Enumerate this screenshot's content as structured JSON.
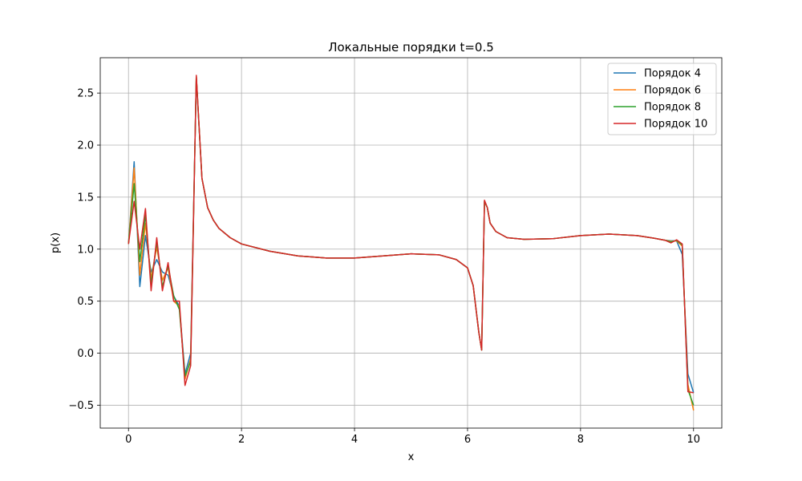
{
  "chart_data": {
    "type": "line",
    "title": "Локальные порядки t=0.5",
    "xlabel": "x",
    "ylabel": "p(x)",
    "xlim": [
      -0.5,
      10.5
    ],
    "ylim": [
      -0.72,
      2.84
    ],
    "xticks": [
      0,
      2,
      4,
      6,
      8,
      10
    ],
    "yticks": [
      -0.5,
      0.0,
      0.5,
      1.0,
      1.5,
      2.0,
      2.5
    ],
    "ytick_labels": [
      "−0.5",
      "0.0",
      "0.5",
      "1.0",
      "1.5",
      "2.0",
      "2.5"
    ],
    "grid": true,
    "legend_position": "top-right",
    "x": [
      0,
      0.1,
      0.2,
      0.3,
      0.4,
      0.5,
      0.6,
      0.7,
      0.8,
      0.9,
      1.0,
      1.1,
      1.2,
      1.3,
      1.4,
      1.5,
      1.6,
      1.8,
      2.0,
      2.5,
      3.0,
      3.5,
      4.0,
      4.5,
      5.0,
      5.5,
      5.8,
      6.0,
      6.1,
      6.2,
      6.25,
      6.3,
      6.35,
      6.4,
      6.5,
      6.7,
      7.0,
      7.5,
      8.0,
      8.5,
      9.0,
      9.3,
      9.5,
      9.6,
      9.7,
      9.8,
      9.9,
      10.0
    ],
    "series": [
      {
        "name": "Порядок 4",
        "color": "#1f77b4",
        "values": [
          1.05,
          1.84,
          0.64,
          1.13,
          0.78,
          0.9,
          0.78,
          0.75,
          0.55,
          0.45,
          -0.2,
          0.0,
          2.64,
          1.68,
          1.4,
          1.28,
          1.2,
          1.11,
          1.05,
          0.98,
          0.935,
          0.915,
          0.915,
          0.935,
          0.955,
          0.945,
          0.9,
          0.82,
          0.65,
          0.2,
          0.03,
          1.46,
          1.4,
          1.25,
          1.17,
          1.11,
          1.095,
          1.1,
          1.13,
          1.145,
          1.13,
          1.105,
          1.085,
          1.08,
          1.08,
          0.95,
          -0.2,
          -0.38
        ]
      },
      {
        "name": "Порядок 6",
        "color": "#ff7f0e",
        "values": [
          1.05,
          1.78,
          0.75,
          1.25,
          0.72,
          1.02,
          0.7,
          0.82,
          0.5,
          0.45,
          -0.25,
          -0.05,
          2.66,
          1.68,
          1.4,
          1.28,
          1.2,
          1.11,
          1.05,
          0.98,
          0.935,
          0.915,
          0.915,
          0.935,
          0.955,
          0.945,
          0.9,
          0.82,
          0.65,
          0.2,
          0.03,
          1.46,
          1.4,
          1.25,
          1.17,
          1.11,
          1.095,
          1.1,
          1.13,
          1.145,
          1.13,
          1.105,
          1.085,
          1.075,
          1.08,
          1.03,
          -0.3,
          -0.55
        ]
      },
      {
        "name": "Порядок 8",
        "color": "#2ca02c",
        "values": [
          1.05,
          1.63,
          0.88,
          1.33,
          0.66,
          1.07,
          0.64,
          0.84,
          0.55,
          0.42,
          -0.22,
          -0.08,
          2.66,
          1.68,
          1.4,
          1.28,
          1.2,
          1.11,
          1.05,
          0.98,
          0.935,
          0.915,
          0.915,
          0.935,
          0.955,
          0.945,
          0.9,
          0.82,
          0.65,
          0.2,
          0.03,
          1.46,
          1.4,
          1.25,
          1.17,
          1.11,
          1.095,
          1.1,
          1.13,
          1.145,
          1.13,
          1.105,
          1.085,
          1.07,
          1.085,
          1.04,
          -0.35,
          -0.5
        ]
      },
      {
        "name": "Порядок 10",
        "color": "#d62728",
        "values": [
          1.05,
          1.46,
          1.0,
          1.39,
          0.6,
          1.11,
          0.6,
          0.87,
          0.5,
          0.5,
          -0.31,
          -0.12,
          2.67,
          1.68,
          1.4,
          1.28,
          1.2,
          1.11,
          1.05,
          0.98,
          0.935,
          0.915,
          0.915,
          0.935,
          0.955,
          0.945,
          0.9,
          0.82,
          0.65,
          0.2,
          0.03,
          1.47,
          1.4,
          1.25,
          1.17,
          1.11,
          1.095,
          1.1,
          1.13,
          1.145,
          1.13,
          1.105,
          1.085,
          1.06,
          1.09,
          1.05,
          -0.37,
          -0.38
        ]
      }
    ]
  }
}
